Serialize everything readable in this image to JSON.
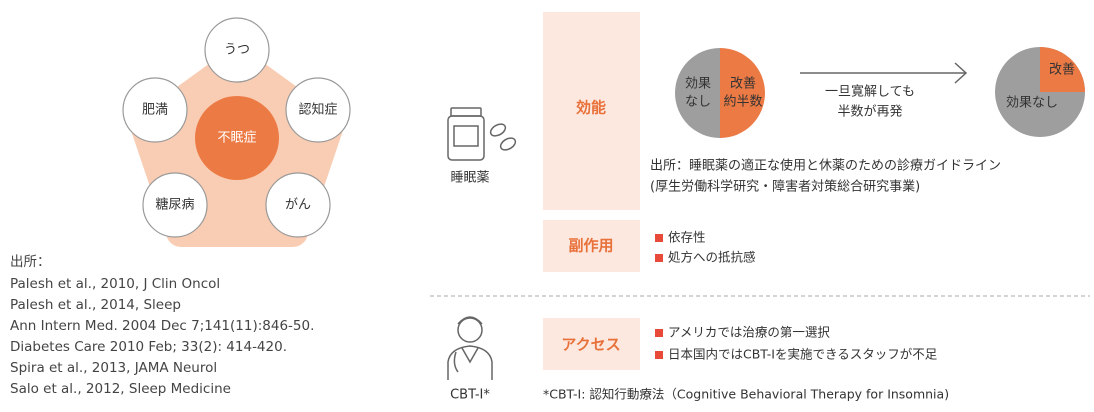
{
  "diagram": {
    "center": "不眠症",
    "nodes": [
      "うつ",
      "肥満",
      "認知症",
      "糖尿病",
      "がん"
    ]
  },
  "sources": {
    "title": "出所：",
    "lines": [
      "Palesh et al., 2010, J Clin Oncol",
      "Palesh et al., 2014, Sleep",
      "Ann Intern Med. 2004 Dec 7;141(11):846-50.",
      "Diabetes Care 2010 Feb; 33(2): 414-420.",
      "Spira et al., 2013, JAMA Neurol",
      "Salo et al., 2012, Sleep Medicine"
    ]
  },
  "drug": {
    "label": "睡眠薬",
    "efficacy": {
      "label": "効能",
      "pie1": {
        "none": [
          "効果",
          "なし"
        ],
        "improve": [
          "改善",
          "約半数"
        ]
      },
      "arrow_text": [
        "一旦寛解しても",
        "半数が再発"
      ],
      "pie2": {
        "improve": "改善",
        "none": "効果なし"
      },
      "source": [
        "出所：睡眠薬の適正な使用と休薬のための診療ガイドライン",
        "(厚生労働科学研究・障害者対策総合研究事業)"
      ]
    },
    "side_effects": {
      "label": "副作用",
      "items": [
        "依存性",
        "処方への抵抗感"
      ]
    }
  },
  "cbt": {
    "label": "CBT-I*",
    "access": {
      "label": "アクセス",
      "items": [
        "アメリカでは治療の第一選択",
        "日本国内ではCBT-Iを実施できるスタッフが不足"
      ]
    },
    "footnote": "*CBT-I: 認知行動療法（Cognitive Behavioral Therapy for Insomnia)"
  }
}
